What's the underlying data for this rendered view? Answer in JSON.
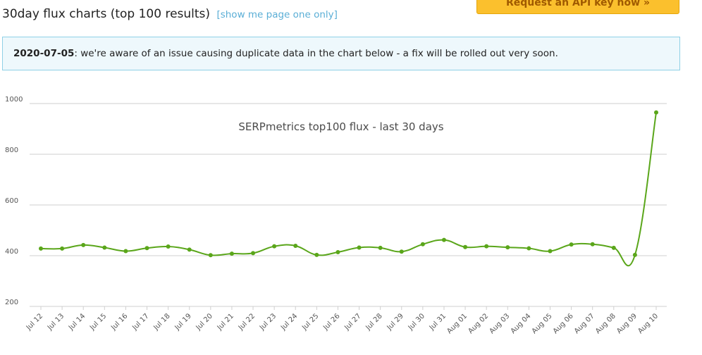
{
  "header": {
    "title": "30day flux charts (top 100 results)",
    "link": "[show me page one only]",
    "api_button": "Request an API key now »"
  },
  "notice": {
    "date": "2020-07-05",
    "message": ": we're aware of an issue causing duplicate data in the chart below - a fix will be rolled out very soon."
  },
  "chart_data": {
    "type": "line",
    "title": "SERPmetrics top100 flux - last 30 days",
    "line_color": "#5aa61a",
    "grid": true,
    "ylim": [
      200,
      1000
    ],
    "yticks": [
      200,
      400,
      600,
      800,
      1000
    ],
    "categories": [
      "Jul 12",
      "Jul 13",
      "Jul 14",
      "Jul 15",
      "Jul 16",
      "Jul 17",
      "Jul 18",
      "Jul 19",
      "Jul 20",
      "Jul 21",
      "Jul 22",
      "Jul 23",
      "Jul 24",
      "Jul 25",
      "Jul 26",
      "Jul 27",
      "Jul 28",
      "Jul 29",
      "Jul 30",
      "Jul 31",
      "Aug 01",
      "Aug 02",
      "Aug 03",
      "Aug 04",
      "Aug 05",
      "Aug 06",
      "Aug 07",
      "Aug 08",
      "Aug 09",
      "Aug 10"
    ],
    "values": [
      428,
      428,
      442,
      432,
      418,
      430,
      436,
      424,
      402,
      408,
      410,
      437,
      439,
      403,
      414,
      432,
      431,
      416,
      445,
      462,
      434,
      437,
      433,
      429,
      418,
      444,
      445,
      431,
      403,
      965
    ]
  }
}
